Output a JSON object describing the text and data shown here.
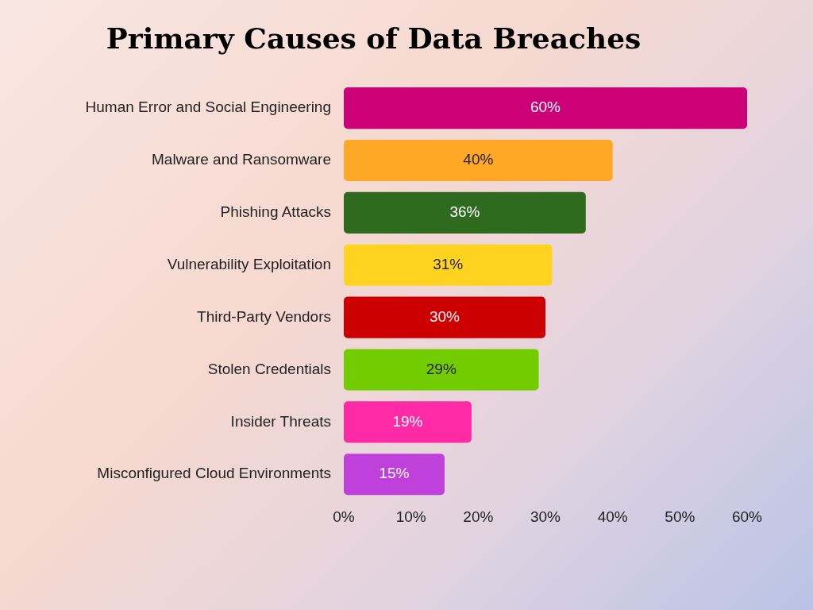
{
  "chart_data": {
    "type": "bar",
    "orientation": "horizontal",
    "title": "Primary Causes of Data Breaches",
    "categories": [
      "Human Error and Social Engineering",
      "Malware and Ransomware",
      "Phishing Attacks",
      "Vulnerability Exploitation",
      "Third-Party Vendors",
      "Stolen Credentials",
      "Insider Threats",
      "Misconfigured Cloud Environments"
    ],
    "values": [
      60,
      40,
      36,
      31,
      30,
      29,
      19,
      15
    ],
    "value_labels": [
      "60%",
      "40%",
      "36%",
      "31%",
      "30%",
      "29%",
      "19%",
      "15%"
    ],
    "colors": [
      "#cc0077",
      "#ffa726",
      "#2e6b1e",
      "#ffd320",
      "#cc0000",
      "#72cc00",
      "#ff2aa6",
      "#c040dc"
    ],
    "xlim": [
      0,
      60
    ],
    "xticks": [
      {
        "value": 0,
        "label": "0%"
      },
      {
        "value": 10,
        "label": "10%"
      },
      {
        "value": 20,
        "label": "20%"
      },
      {
        "value": 30,
        "label": "30%"
      },
      {
        "value": 40,
        "label": "40%"
      },
      {
        "value": 50,
        "label": "50%"
      },
      {
        "value": 60,
        "label": "60%"
      }
    ],
    "grid": false,
    "legend": false
  }
}
